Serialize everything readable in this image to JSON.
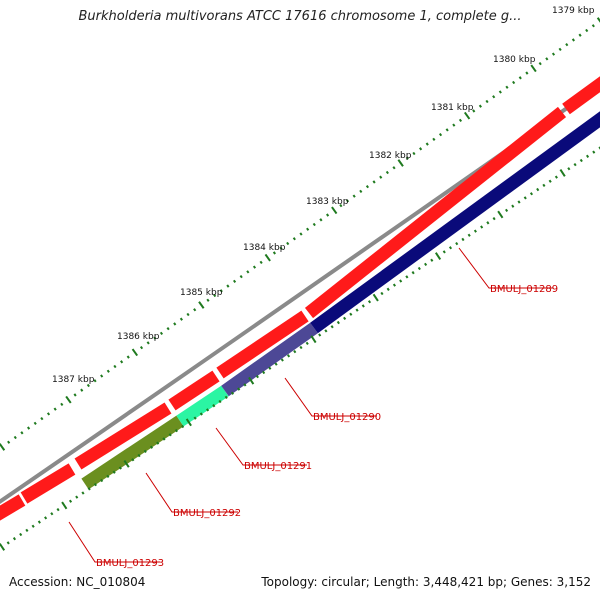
{
  "title": "Burkholderia multivorans ATCC 17616 chromosome 1, complete g...",
  "accession_label": "Accession: NC_010804",
  "summary_label": "Topology: circular; Length: 3,448,421 bp; Genes: 3,152",
  "tick_labels": [
    "1379 kbp",
    "1380 kbp",
    "1381 kbp",
    "1382 kbp",
    "1383 kbp",
    "1384 kbp",
    "1385 kbp",
    "1386 kbp",
    "1387 kbp"
  ],
  "gene_labels": [
    "BMULJ_01289",
    "BMULJ_01290",
    "BMULJ_01291",
    "BMULJ_01292",
    "BMULJ_01293"
  ],
  "colors": {
    "backbone": "#8a8a8a",
    "forward_gene": "#ff1a1a",
    "reverse_gene_01289": "#0a0a7a",
    "reverse_gene_01290": "#4d4896",
    "reverse_gene_01291": "#2bf5a3",
    "reverse_gene_01292": "#6b8f1f",
    "tick_marks": "#1f7a1f",
    "label_line": "#cc0000"
  }
}
